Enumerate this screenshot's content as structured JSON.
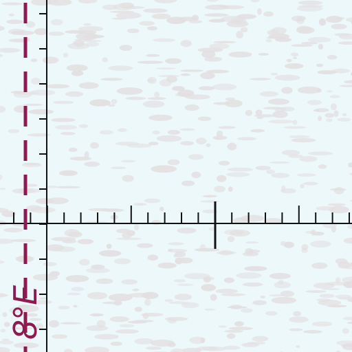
{
  "map": {
    "meridian_label": "8°E",
    "colors": {
      "background": "#ecf8fa",
      "texture": "#e3dfe1",
      "grid": "#111111",
      "meridian": "#8e1a52"
    }
  }
}
